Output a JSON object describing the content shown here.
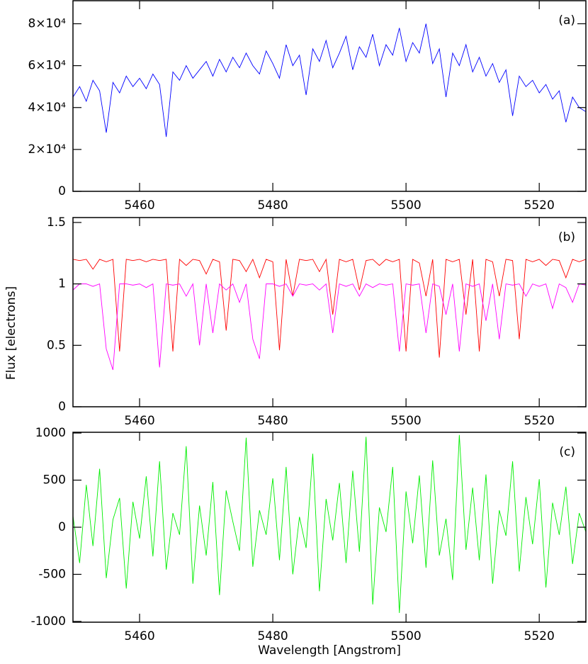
{
  "chart_data": [
    {
      "type": "line",
      "annotation": "(a)",
      "x": [
        5450,
        5451,
        5452,
        5453,
        5454,
        5455,
        5456,
        5457,
        5458,
        5459,
        5460,
        5461,
        5462,
        5463,
        5464,
        5465,
        5466,
        5467,
        5468,
        5469,
        5470,
        5471,
        5472,
        5473,
        5474,
        5475,
        5476,
        5477,
        5478,
        5479,
        5480,
        5481,
        5482,
        5483,
        5484,
        5485,
        5486,
        5487,
        5488,
        5489,
        5490,
        5491,
        5492,
        5493,
        5494,
        5495,
        5496,
        5497,
        5498,
        5499,
        5500,
        5501,
        5502,
        5503,
        5504,
        5505,
        5506,
        5507,
        5508,
        5509,
        5510,
        5511,
        5512,
        5513,
        5514,
        5515,
        5516,
        5517,
        5518,
        5519,
        5520,
        5521,
        5522,
        5523,
        5524,
        5525,
        5526,
        5527
      ],
      "series": [
        {
          "color": "#0000ff",
          "values": [
            45000,
            50000,
            43000,
            53000,
            48000,
            28000,
            52000,
            47000,
            55000,
            50000,
            54000,
            49000,
            56000,
            51000,
            26000,
            57000,
            53000,
            60000,
            54000,
            58000,
            62000,
            55000,
            63000,
            57000,
            64000,
            59000,
            66000,
            60000,
            56000,
            67000,
            61000,
            54000,
            70000,
            60000,
            65000,
            46000,
            68000,
            62000,
            72000,
            59000,
            66000,
            74000,
            58000,
            69000,
            64000,
            75000,
            60000,
            70000,
            65000,
            78000,
            62000,
            71000,
            66000,
            80000,
            61000,
            68000,
            45000,
            66000,
            60000,
            70000,
            57000,
            64000,
            55000,
            61000,
            52000,
            58000,
            36000,
            55000,
            50000,
            53000,
            47000,
            51000,
            44000,
            48000,
            33000,
            45000,
            40000,
            38000
          ]
        }
      ],
      "xlim": [
        5450,
        5527
      ],
      "xticks": [
        5460,
        5480,
        5500,
        5520
      ],
      "ylim": [
        0,
        91000
      ],
      "yticks": [
        0,
        {
          "value": 20000,
          "label": "2×10⁴"
        },
        {
          "value": 40000,
          "label": "4×10⁴"
        },
        {
          "value": 60000,
          "label": "6×10⁴"
        },
        {
          "value": 80000,
          "label": "8×10⁴"
        }
      ]
    },
    {
      "type": "line",
      "annotation": "(b)",
      "ylabel": "Flux [electrons]",
      "x": [
        5450,
        5451,
        5452,
        5453,
        5454,
        5455,
        5456,
        5457,
        5458,
        5459,
        5460,
        5461,
        5462,
        5463,
        5464,
        5465,
        5466,
        5467,
        5468,
        5469,
        5470,
        5471,
        5472,
        5473,
        5474,
        5475,
        5476,
        5477,
        5478,
        5479,
        5480,
        5481,
        5482,
        5483,
        5484,
        5485,
        5486,
        5487,
        5488,
        5489,
        5490,
        5491,
        5492,
        5493,
        5494,
        5495,
        5496,
        5497,
        5498,
        5499,
        5500,
        5501,
        5502,
        5503,
        5504,
        5505,
        5506,
        5507,
        5508,
        5509,
        5510,
        5511,
        5512,
        5513,
        5514,
        5515,
        5516,
        5517,
        5518,
        5519,
        5520,
        5521,
        5522,
        5523,
        5524,
        5525,
        5526,
        5527
      ],
      "series": [
        {
          "color": "#ff0000",
          "values": [
            1.2,
            1.19,
            1.2,
            1.12,
            1.2,
            1.18,
            1.2,
            0.45,
            1.2,
            1.19,
            1.2,
            1.18,
            1.2,
            1.19,
            1.2,
            0.45,
            1.2,
            1.15,
            1.2,
            1.19,
            1.08,
            1.2,
            1.18,
            0.62,
            1.2,
            1.19,
            1.1,
            1.2,
            1.05,
            1.2,
            1.18,
            0.46,
            1.2,
            0.9,
            1.2,
            1.19,
            1.2,
            1.1,
            1.2,
            0.75,
            1.2,
            1.18,
            1.2,
            0.95,
            1.19,
            1.2,
            1.15,
            1.2,
            1.18,
            1.2,
            0.45,
            1.2,
            1.17,
            0.9,
            1.2,
            0.4,
            1.2,
            1.18,
            1.2,
            0.75,
            1.2,
            0.45,
            1.2,
            1.18,
            0.9,
            1.2,
            1.19,
            0.55,
            1.2,
            1.18,
            1.2,
            1.15,
            1.2,
            1.19,
            1.05,
            1.2,
            1.18,
            1.2
          ]
        },
        {
          "color": "#ff00ff",
          "values": [
            0.95,
            1.0,
            1.0,
            0.98,
            1.0,
            0.47,
            0.3,
            1.0,
            1.0,
            0.99,
            1.0,
            0.97,
            1.0,
            0.32,
            1.0,
            0.99,
            1.0,
            0.9,
            1.0,
            0.5,
            1.0,
            0.6,
            1.0,
            0.95,
            1.0,
            0.85,
            1.0,
            0.55,
            0.39,
            1.0,
            1.0,
            0.98,
            1.0,
            0.9,
            1.0,
            0.99,
            1.0,
            0.95,
            1.0,
            0.6,
            1.0,
            0.98,
            1.0,
            0.9,
            1.0,
            0.97,
            1.0,
            0.99,
            1.0,
            0.45,
            1.0,
            0.99,
            1.0,
            0.6,
            1.0,
            0.98,
            0.75,
            1.0,
            0.45,
            1.0,
            0.98,
            1.0,
            0.7,
            1.0,
            0.55,
            1.0,
            0.99,
            1.0,
            0.9,
            1.0,
            0.98,
            1.0,
            0.8,
            1.0,
            0.97,
            0.85,
            1.0,
            0.99
          ]
        }
      ],
      "xlim": [
        5450,
        5527
      ],
      "xticks": [
        5460,
        5480,
        5500,
        5520
      ],
      "ylim": [
        0,
        1.54
      ],
      "yticks": [
        0,
        0.5,
        1,
        1.5
      ]
    },
    {
      "type": "line",
      "annotation": "(c)",
      "xlabel": "Wavelength [Angstrom]",
      "x": [
        5450,
        5451,
        5452,
        5453,
        5454,
        5455,
        5456,
        5457,
        5458,
        5459,
        5460,
        5461,
        5462,
        5463,
        5464,
        5465,
        5466,
        5467,
        5468,
        5469,
        5470,
        5471,
        5472,
        5473,
        5474,
        5475,
        5476,
        5477,
        5478,
        5479,
        5480,
        5481,
        5482,
        5483,
        5484,
        5485,
        5486,
        5487,
        5488,
        5489,
        5490,
        5491,
        5492,
        5493,
        5494,
        5495,
        5496,
        5497,
        5498,
        5499,
        5500,
        5501,
        5502,
        5503,
        5504,
        5505,
        5506,
        5507,
        5508,
        5509,
        5510,
        5511,
        5512,
        5513,
        5514,
        5515,
        5516,
        5517,
        5518,
        5519,
        5520,
        5521,
        5522,
        5523,
        5524,
        5525,
        5526,
        5527
      ],
      "series": [
        {
          "color": "#00ee00",
          "values": [
            120,
            -380,
            450,
            -200,
            620,
            -540,
            80,
            310,
            -650,
            270,
            -120,
            540,
            -310,
            700,
            -450,
            150,
            -80,
            860,
            -600,
            230,
            -300,
            480,
            -720,
            390,
            60,
            -250,
            950,
            -420,
            180,
            -80,
            520,
            -350,
            640,
            -500,
            110,
            -220,
            780,
            -680,
            300,
            -140,
            470,
            -380,
            600,
            -260,
            960,
            -820,
            210,
            -50,
            640,
            -910,
            380,
            -170,
            550,
            -430,
            710,
            -300,
            90,
            -560,
            980,
            -240,
            420,
            -350,
            560,
            -600,
            180,
            -90,
            700,
            -470,
            320,
            -180,
            510,
            -640,
            260,
            -80,
            430,
            -390,
            150,
            -50
          ]
        }
      ],
      "xlim": [
        5450,
        5527
      ],
      "xticks": [
        5460,
        5480,
        5500,
        5520
      ],
      "ylim": [
        -1008,
        1008
      ],
      "yticks": [
        -1000,
        -500,
        0,
        500,
        1000
      ]
    }
  ]
}
